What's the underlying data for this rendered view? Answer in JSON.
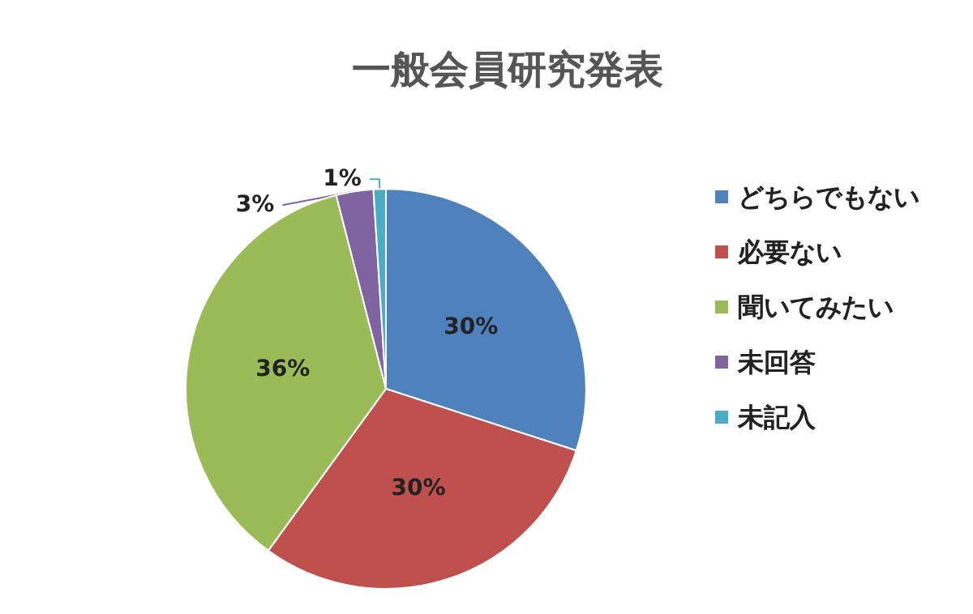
{
  "chart_data": {
    "type": "pie",
    "title": "一般会員研究発表",
    "categories": [
      "どちらでもない",
      "必要ない",
      "聞いてみたい",
      "未回答",
      "未記入"
    ],
    "values": [
      30,
      30,
      36,
      3,
      1
    ],
    "colors": [
      "#4f81bd",
      "#c0504d",
      "#9bbb59",
      "#8064a2",
      "#4bacc6"
    ],
    "value_labels": [
      "30%",
      "30%",
      "36%",
      "3%",
      "1%"
    ],
    "legend": "right"
  }
}
